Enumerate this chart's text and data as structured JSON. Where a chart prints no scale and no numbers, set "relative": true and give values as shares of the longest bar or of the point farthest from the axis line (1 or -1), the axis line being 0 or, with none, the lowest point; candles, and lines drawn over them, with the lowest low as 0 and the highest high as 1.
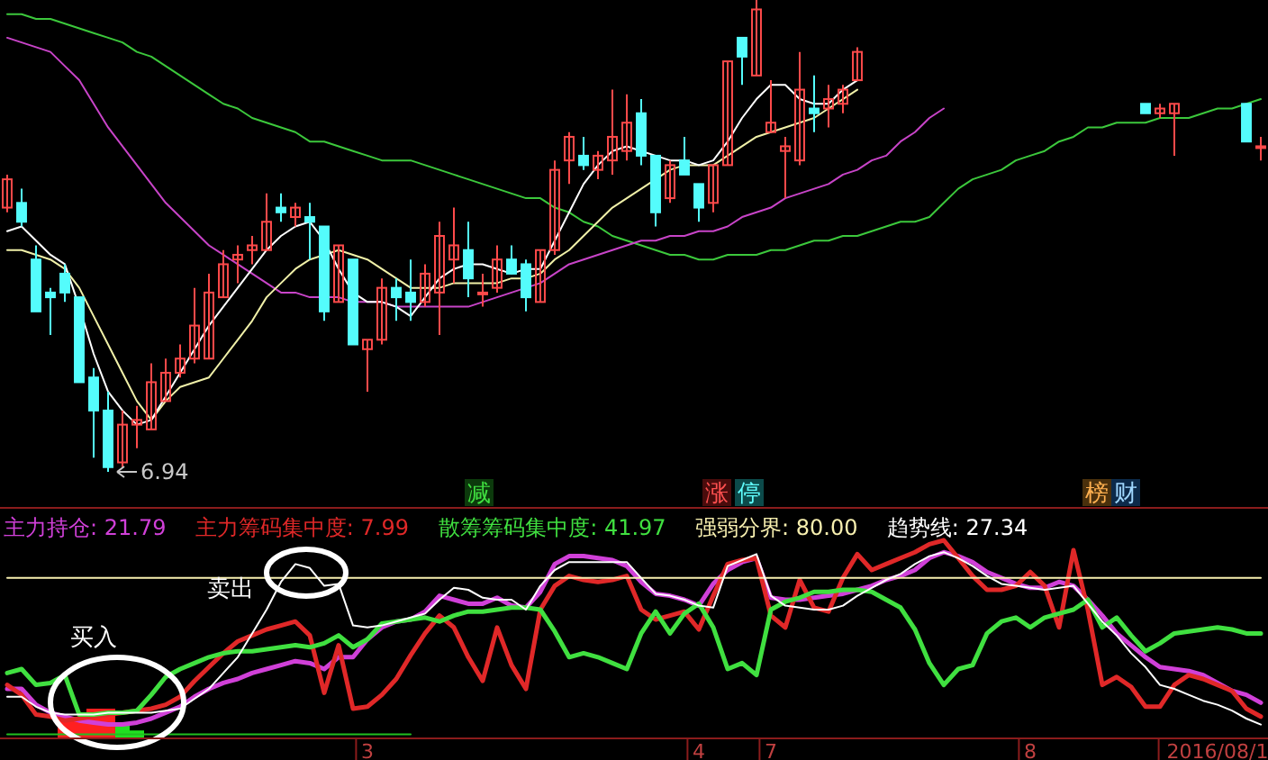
{
  "chart_data": [
    {
      "type": "candlestick",
      "relative": true,
      "tick_labels": false,
      "categories": [
        null,
        null,
        null,
        null,
        null,
        null,
        null,
        null,
        null,
        null,
        null,
        null,
        null,
        null,
        null,
        null,
        null,
        null,
        null,
        null,
        null,
        null,
        null,
        null,
        null,
        null,
        null,
        null,
        null,
        null,
        null,
        null,
        null,
        null,
        null,
        null,
        null,
        null,
        null,
        null,
        null,
        null,
        null,
        null,
        null,
        null,
        null,
        null,
        null,
        null,
        null,
        null,
        null,
        null,
        null,
        null,
        null,
        null,
        null,
        null,
        null,
        null,
        null,
        null,
        null,
        null,
        null,
        null,
        null,
        null,
        null,
        null,
        null,
        null,
        null,
        null,
        null,
        null,
        null,
        null,
        null,
        null,
        null,
        null,
        null,
        null,
        null,
        null
      ],
      "ohlc": [
        [
          0.56,
          0.63,
          0.55,
          0.62
        ],
        [
          0.57,
          0.6,
          0.52,
          0.53
        ],
        [
          0.45,
          0.48,
          0.34,
          0.34
        ],
        [
          0.38,
          0.39,
          0.29,
          0.37
        ],
        [
          0.42,
          0.44,
          0.36,
          0.38
        ],
        [
          0.37,
          0.37,
          0.19,
          0.19
        ],
        [
          0.2,
          0.22,
          0.03,
          0.13
        ],
        [
          0.13,
          0.17,
          0,
          0.01
        ],
        [
          0.02,
          0.13,
          0.01,
          0.1
        ],
        [
          0.1,
          0.14,
          0.05,
          0.11
        ],
        [
          0.09,
          0.23,
          0.09,
          0.19
        ],
        [
          0.15,
          0.24,
          0.15,
          0.21
        ],
        [
          0.21,
          0.27,
          0.2,
          0.24
        ],
        [
          0.24,
          0.39,
          0.23,
          0.31
        ],
        [
          0.24,
          0.42,
          0.24,
          0.38
        ],
        [
          0.37,
          0.47,
          0.37,
          0.44
        ],
        [
          0.45,
          0.48,
          0.4,
          0.46
        ],
        [
          0.47,
          0.5,
          0.44,
          0.48
        ],
        [
          0.47,
          0.59,
          0.47,
          0.53
        ],
        [
          0.56,
          0.59,
          0.53,
          0.55
        ],
        [
          0.54,
          0.57,
          0.52,
          0.56
        ],
        [
          0.54,
          0.57,
          0.45,
          0.53
        ],
        [
          0.52,
          0.52,
          0.32,
          0.34
        ],
        [
          0.36,
          0.48,
          0.36,
          0.48
        ],
        [
          0.45,
          0.45,
          0.27,
          0.27
        ],
        [
          0.26,
          0.28,
          0.17,
          0.28
        ],
        [
          0.28,
          0.41,
          0.27,
          0.39
        ],
        [
          0.39,
          0.41,
          0.32,
          0.37
        ],
        [
          0.38,
          0.45,
          0.32,
          0.36
        ],
        [
          0.36,
          0.44,
          0.35,
          0.42
        ],
        [
          0.38,
          0.53,
          0.29,
          0.5
        ],
        [
          0.45,
          0.56,
          0.4,
          0.48
        ],
        [
          0.47,
          0.53,
          0.37,
          0.41
        ],
        [
          0.38,
          0.42,
          0.35,
          0.38
        ],
        [
          0.39,
          0.48,
          0.38,
          0.45
        ],
        [
          0.45,
          0.48,
          0.42,
          0.42
        ],
        [
          0.44,
          0.45,
          0.34,
          0.37
        ],
        [
          0.36,
          0.47,
          0.36,
          0.47
        ],
        [
          0.47,
          0.66,
          0.46,
          0.64
        ],
        [
          0.66,
          0.72,
          0.61,
          0.71
        ],
        [
          0.67,
          0.71,
          0.64,
          0.65
        ],
        [
          0.64,
          0.68,
          0.62,
          0.67
        ],
        [
          0.66,
          0.81,
          0.63,
          0.71
        ],
        [
          0.68,
          0.8,
          0.66,
          0.74
        ],
        [
          0.76,
          0.79,
          0.65,
          0.67
        ],
        [
          0.67,
          0.67,
          0.52,
          0.55
        ],
        [
          0.58,
          0.66,
          0.57,
          0.65
        ],
        [
          0.66,
          0.71,
          0.63,
          0.63
        ],
        [
          0.61,
          0.61,
          0.53,
          0.56
        ],
        [
          0.57,
          0.65,
          0.55,
          0.65
        ],
        [
          0.65,
          0.87,
          0.65,
          0.87
        ],
        [
          0.92,
          0.92,
          0.82,
          0.88
        ],
        [
          0.84,
          1,
          0.84,
          0.98
        ],
        [
          0.72,
          0.83,
          0.72,
          0.74
        ],
        [
          0.68,
          0.71,
          0.58,
          0.69
        ],
        [
          0.66,
          0.89,
          0.65,
          0.81
        ],
        [
          0.77,
          0.84,
          0.72,
          0.76
        ],
        [
          0.77,
          0.82,
          0.73,
          0.79
        ],
        [
          0.78,
          0.82,
          0.76,
          0.81
        ],
        [
          0.83,
          0.9,
          0.83,
          0.89
        ],
        null,
        null,
        null,
        null,
        null,
        null,
        null,
        null,
        null,
        null,
        null,
        null,
        null,
        null,
        null,
        null,
        null,
        null,
        null,
        [
          0.78,
          0.78,
          0.76,
          0.76
        ],
        [
          0.76,
          0.78,
          0.75,
          0.77
        ],
        [
          0.76,
          0.78,
          0.67,
          0.78
        ],
        null,
        null,
        null,
        null,
        [
          0.78,
          0.78,
          0.7,
          0.7
        ],
        [
          0.69,
          0.71,
          0.66,
          0.69
        ]
      ],
      "series": [
        {
          "type": "line",
          "color": "#3cc83c",
          "values": [
            0.97,
            0.97,
            0.96,
            0.96,
            0.95,
            0.94,
            0.93,
            0.92,
            0.91,
            0.89,
            0.88,
            0.86,
            0.84,
            0.82,
            0.8,
            0.78,
            0.77,
            0.75,
            0.74,
            0.73,
            0.72,
            0.7,
            0.7,
            0.69,
            0.68,
            0.67,
            0.66,
            0.66,
            0.66,
            0.65,
            0.64,
            0.63,
            0.62,
            0.61,
            0.6,
            0.59,
            0.58,
            0.58,
            0.56,
            0.55,
            0.53,
            0.52,
            0.5,
            0.49,
            0.48,
            0.47,
            0.46,
            0.46,
            0.45,
            0.45,
            0.46,
            0.46,
            0.46,
            0.47,
            0.47,
            0.48,
            0.49,
            0.49,
            0.5,
            0.5,
            0.51,
            0.52,
            0.53,
            0.53,
            0.54,
            0.57,
            0.6,
            0.62,
            0.63,
            0.64,
            0.66,
            0.67,
            0.68,
            0.7,
            0.71,
            0.73,
            0.73,
            0.74,
            0.74,
            0.74,
            0.75,
            0.75,
            0.75,
            0.76,
            0.77,
            0.77,
            0.78,
            0.79
          ]
        },
        {
          "type": "line",
          "color": "#c844c8",
          "values": [
            0.92,
            0.91,
            0.9,
            0.89,
            0.86,
            0.83,
            0.78,
            0.73,
            0.69,
            0.65,
            0.61,
            0.57,
            0.54,
            0.51,
            0.48,
            0.46,
            0.44,
            0.42,
            0.4,
            0.38,
            0.38,
            0.37,
            0.37,
            0.37,
            0.36,
            0.36,
            0.36,
            0.35,
            0.35,
            0.35,
            0.35,
            0.35,
            0.35,
            0.36,
            0.37,
            0.38,
            0.39,
            0.4,
            0.42,
            0.44,
            0.45,
            0.46,
            0.47,
            0.48,
            0.49,
            0.49,
            0.5,
            0.5,
            0.51,
            0.51,
            0.52,
            0.54,
            0.55,
            0.56,
            0.58,
            0.59,
            0.6,
            0.61,
            0.63,
            0.64,
            0.66,
            0.67,
            0.7,
            0.72,
            0.75,
            0.77,
            null,
            null,
            null,
            null,
            null,
            null,
            null,
            null,
            null,
            null,
            null,
            null,
            null,
            null,
            null,
            null,
            null,
            null,
            null,
            null,
            null,
            null
          ]
        },
        {
          "type": "line",
          "color": "#f0f0a8",
          "values": [
            0.47,
            0.47,
            0.46,
            0.45,
            0.43,
            0.39,
            0.33,
            0.27,
            0.21,
            0.15,
            0.11,
            0.15,
            0.18,
            0.19,
            0.2,
            0.24,
            0.28,
            0.32,
            0.37,
            0.4,
            0.43,
            0.45,
            0.46,
            0.47,
            0.46,
            0.45,
            0.43,
            0.41,
            0.39,
            0.39,
            0.39,
            0.4,
            0.4,
            0.4,
            0.4,
            0.41,
            0.41,
            0.42,
            0.45,
            0.47,
            0.5,
            0.53,
            0.56,
            0.58,
            0.6,
            0.62,
            0.64,
            0.65,
            0.65,
            0.65,
            0.67,
            0.69,
            0.71,
            0.72,
            0.73,
            0.74,
            0.75,
            0.77,
            0.79,
            0.81,
            null,
            null,
            null,
            null,
            null,
            null,
            null,
            null,
            null,
            null,
            null,
            null,
            null,
            null,
            null,
            null,
            null,
            null,
            null,
            null,
            null,
            null,
            null,
            null,
            null,
            null,
            null,
            null
          ]
        },
        {
          "type": "line",
          "color": "#ffffff",
          "values": [
            0.51,
            0.52,
            0.49,
            0.46,
            0.44,
            0.35,
            0.25,
            0.17,
            0.13,
            0.1,
            0.11,
            0.16,
            0.21,
            0.26,
            0.31,
            0.35,
            0.39,
            0.43,
            0.47,
            0.5,
            0.52,
            0.53,
            0.49,
            0.43,
            0.38,
            0.36,
            0.36,
            0.35,
            0.33,
            0.37,
            0.41,
            0.43,
            0.44,
            0.44,
            0.43,
            0.42,
            0.43,
            0.43,
            0.49,
            0.55,
            0.61,
            0.65,
            0.68,
            0.69,
            0.68,
            0.67,
            0.66,
            0.66,
            0.65,
            0.66,
            0.7,
            0.75,
            0.79,
            0.82,
            0.82,
            0.79,
            0.78,
            0.78,
            0.81,
            0.83,
            null,
            null,
            null,
            null,
            null,
            null,
            null,
            null,
            null,
            null,
            null,
            null,
            null,
            null,
            null,
            null,
            null,
            null,
            null,
            null,
            null,
            null,
            null,
            null,
            null,
            null,
            null,
            null
          ]
        }
      ],
      "annotations": [
        "减",
        "涨",
        "停",
        "榜",
        "财",
        "6.94"
      ]
    },
    {
      "type": "line",
      "relative": true,
      "tick_labels": "x",
      "legend": "top left",
      "categories": [
        null,
        null,
        null,
        null,
        null,
        null,
        null,
        null,
        null,
        null,
        null,
        null,
        null,
        null,
        null,
        null,
        null,
        null,
        null,
        null,
        null,
        null,
        null,
        null,
        null,
        "3",
        null,
        null,
        null,
        null,
        null,
        null,
        null,
        null,
        null,
        null,
        null,
        null,
        null,
        null,
        null,
        null,
        null,
        null,
        null,
        null,
        null,
        null,
        "4",
        null,
        null,
        null,
        null,
        "7",
        null,
        null,
        null,
        null,
        null,
        null,
        null,
        null,
        null,
        null,
        null,
        null,
        null,
        null,
        null,
        null,
        null,
        "8",
        null,
        null,
        null,
        null,
        null,
        null,
        null,
        null,
        null,
        null,
        null,
        null,
        "2016/08/1",
        null,
        null,
        null
      ],
      "series": [
        {
          "type": "bar",
          "color": "#ff2020",
          "values": [
            null,
            null,
            null,
            null,
            0.09,
            0.09,
            0.15,
            0.15,
            null,
            null,
            null,
            null,
            null,
            null,
            null,
            null,
            null,
            null,
            null,
            null,
            null,
            null,
            null,
            null,
            null,
            null,
            null,
            null,
            null,
            null,
            null,
            null,
            null,
            null,
            null,
            null,
            null,
            null,
            null,
            null,
            null,
            null,
            null,
            null,
            null,
            null,
            null,
            null,
            null,
            null,
            null,
            null,
            null,
            null,
            null,
            null,
            null,
            null,
            null,
            null,
            null,
            null,
            null,
            null,
            null,
            null,
            null,
            null,
            null,
            null,
            null,
            null,
            null,
            null,
            null,
            null,
            null,
            null,
            null,
            null,
            null,
            null,
            null,
            null,
            null,
            null,
            null,
            null
          ]
        },
        {
          "type": "bar",
          "color": "#20e020",
          "values": [
            null,
            null,
            null,
            null,
            null,
            null,
            null,
            null,
            0.07,
            0.04,
            null,
            null,
            null,
            null,
            null,
            null,
            null,
            null,
            null,
            null,
            null,
            null,
            null,
            null,
            null,
            null,
            null,
            null,
            null,
            null,
            null,
            null,
            null,
            null,
            null,
            null,
            null,
            null,
            null,
            null,
            null,
            null,
            null,
            null,
            null,
            null,
            null,
            null,
            null,
            null,
            null,
            null,
            null,
            null,
            null,
            null,
            null,
            null,
            null,
            null,
            null,
            null,
            null,
            null,
            null,
            null,
            null,
            null,
            null,
            null,
            null,
            null,
            null,
            null,
            null,
            null,
            null,
            null,
            null,
            null,
            null,
            null,
            null,
            null,
            null,
            null,
            null,
            null
          ]
        },
        {
          "type": "line",
          "color": "#20c020",
          "values": [
            0.02,
            0.02,
            0.02,
            0.02,
            0.02,
            0.02,
            0.02,
            0.02,
            0.02,
            0.02,
            0.02,
            0.02,
            0.02,
            0.02,
            0.02,
            0.02,
            0.02,
            0.02,
            0.02,
            0.02,
            0.02,
            0.02,
            0.02,
            0.02,
            0.02,
            0.02,
            0.02,
            0.02,
            0.02,
            null,
            null,
            null,
            null,
            null,
            null,
            null,
            null,
            null,
            null,
            null,
            null,
            null,
            null,
            null,
            null,
            null,
            null,
            null,
            null,
            null,
            null,
            null,
            null,
            null,
            null,
            null,
            null,
            null,
            null,
            null,
            null,
            null,
            null,
            null,
            null,
            null,
            null,
            null,
            null,
            null,
            null,
            null,
            null,
            null,
            null,
            null,
            null,
            null,
            null,
            null,
            null,
            null,
            null,
            null,
            null,
            null,
            null,
            null
          ]
        },
        {
          "name": "主力持仓: 21.79",
          "color": "#d040d8",
          "values": [
            0.25,
            0.25,
            0.17,
            0.13,
            0.11,
            0.09,
            0.08,
            0.07,
            0.07,
            0.08,
            0.1,
            0.13,
            0.16,
            0.21,
            0.25,
            0.28,
            0.3,
            0.33,
            0.35,
            0.37,
            0.39,
            0.38,
            0.35,
            0.41,
            0.41,
            0.5,
            0.56,
            0.59,
            0.6,
            0.64,
            0.72,
            0.7,
            0.68,
            0.68,
            0.71,
            0.67,
            0.66,
            0.74,
            0.88,
            0.92,
            0.92,
            0.91,
            0.9,
            0.87,
            0.79,
            0.73,
            0.72,
            0.7,
            0.67,
            0.78,
            0.85,
            0.89,
            0.91,
            0.71,
            0.7,
            0.7,
            0.71,
            0.72,
            0.73,
            0.75,
            0.77,
            0.8,
            0.82,
            0.85,
            0.91,
            0.94,
            0.92,
            0.89,
            0.84,
            0.81,
            0.78,
            0.76,
            0.76,
            0.79,
            0.77,
            0.7,
            0.62,
            0.53,
            0.47,
            0.41,
            0.36,
            0.35,
            0.34,
            0.32,
            0.28,
            0.24,
            0.22,
            0.18
          ]
        },
        {
          "name": "主力筹码集中度: 7.99",
          "color": "#e02828",
          "values": [
            0.27,
            0.22,
            0.12,
            0.11,
            0.09,
            0.1,
            0.11,
            0.12,
            0.13,
            0.14,
            0.15,
            0.17,
            0.21,
            0.29,
            0.36,
            0.43,
            0.49,
            0.52,
            0.55,
            0.57,
            0.59,
            0.52,
            0.23,
            0.47,
            0.15,
            0.16,
            0.22,
            0.3,
            0.42,
            0.53,
            0.62,
            0.56,
            0.41,
            0.29,
            0.56,
            0.37,
            0.25,
            0.65,
            0.77,
            0.82,
            0.8,
            0.79,
            0.8,
            0.82,
            0.65,
            0.6,
            0.62,
            0.64,
            0.55,
            0.72,
            0.88,
            0.9,
            0.91,
            0.62,
            0.56,
            0.8,
            0.66,
            0.64,
            0.81,
            0.93,
            0.85,
            0.88,
            0.91,
            0.94,
            0.98,
            1,
            0.91,
            0.82,
            0.75,
            0.75,
            0.77,
            0.84,
            0.77,
            0.56,
            0.95,
            0.65,
            0.27,
            0.31,
            0.26,
            0.16,
            0.16,
            0.27,
            0.32,
            0.3,
            0.27,
            0.24,
            0.15,
            0.11
          ]
        },
        {
          "name": "散筹筹码集中度: 41.97",
          "color": "#40e040",
          "values": [
            0.33,
            0.35,
            0.27,
            0.28,
            0.32,
            0.12,
            0.12,
            0.13,
            0.13,
            0.14,
            0.22,
            0.31,
            0.35,
            0.38,
            0.41,
            0.43,
            0.44,
            0.44,
            0.45,
            0.46,
            0.47,
            0.46,
            0.48,
            0.52,
            0.46,
            0.5,
            0.58,
            0.59,
            0.6,
            0.61,
            0.59,
            0.62,
            0.64,
            0.64,
            0.65,
            0.66,
            0.66,
            0.65,
            0.54,
            0.41,
            0.43,
            0.41,
            0.38,
            0.35,
            0.53,
            0.64,
            0.53,
            0.63,
            0.68,
            0.56,
            0.35,
            0.38,
            0.32,
            0.65,
            0.69,
            0.71,
            0.74,
            0.74,
            0.75,
            0.75,
            0.74,
            0.7,
            0.66,
            0.55,
            0.38,
            0.27,
            0.35,
            0.37,
            0.53,
            0.59,
            0.61,
            0.56,
            0.61,
            0.63,
            0.65,
            0.7,
            0.56,
            0.61,
            0.52,
            0.44,
            0.48,
            0.53,
            0.54,
            0.55,
            0.56,
            0.55,
            0.53,
            0.53
          ]
        },
        {
          "name": "强弱分界: 80.00",
          "color": "#f8f0b0",
          "values": [
            0.81,
            0.81,
            0.81,
            0.81,
            0.81,
            0.81,
            0.81,
            0.81,
            0.81,
            0.81,
            0.81,
            0.81,
            0.81,
            0.81,
            0.81,
            0.81,
            0.81,
            0.81,
            0.81,
            0.81,
            0.81,
            0.81,
            0.81,
            0.81,
            0.81,
            0.81,
            0.81,
            0.81,
            0.81,
            0.81,
            0.81,
            0.81,
            0.81,
            0.81,
            0.81,
            0.81,
            0.81,
            0.81,
            0.81,
            0.81,
            0.81,
            0.81,
            0.81,
            0.81,
            0.81,
            0.81,
            0.81,
            0.81,
            0.81,
            0.81,
            0.81,
            0.81,
            0.81,
            0.81,
            0.81,
            0.81,
            0.81,
            0.81,
            0.81,
            0.81,
            0.81,
            0.81,
            0.81,
            0.81,
            0.81,
            0.81,
            0.81,
            0.81,
            0.81,
            0.81,
            0.81,
            0.81,
            0.81,
            0.81,
            0.81,
            0.81,
            0.81,
            0.81,
            0.81,
            0.81,
            0.81,
            0.81,
            0.81,
            0.81,
            0.81,
            0.81,
            0.81,
            0.81
          ]
        },
        {
          "name": "趋势线: 27.34",
          "color": "#ffffff",
          "values": [
            0.21,
            0.21,
            0.16,
            0.13,
            0.12,
            0.12,
            0.12,
            0.13,
            0.13,
            0.13,
            0.13,
            0.14,
            0.15,
            0.2,
            0.25,
            0.33,
            0.41,
            0.53,
            0.65,
            0.79,
            0.88,
            0.86,
            0.77,
            0.78,
            0.57,
            0.56,
            0.57,
            0.59,
            0.61,
            0.63,
            0.7,
            0.76,
            0.75,
            0.71,
            0.7,
            0.7,
            0.65,
            0.77,
            0.85,
            0.89,
            0.89,
            0.89,
            0.89,
            0.89,
            0.81,
            0.73,
            0.72,
            0.7,
            0.67,
            0.66,
            0.87,
            0.9,
            0.93,
            0.72,
            0.67,
            0.66,
            0.65,
            0.65,
            0.67,
            0.72,
            0.76,
            0.8,
            0.83,
            0.88,
            0.92,
            0.94,
            0.91,
            0.87,
            0.82,
            0.78,
            0.77,
            0.76,
            0.75,
            0.76,
            0.77,
            0.68,
            0.59,
            0.52,
            0.43,
            0.36,
            0.27,
            0.25,
            0.22,
            0.19,
            0.17,
            0.14,
            0.1,
            0.07
          ]
        }
      ],
      "annotations": [
        "卖出",
        "买入"
      ]
    }
  ]
}
